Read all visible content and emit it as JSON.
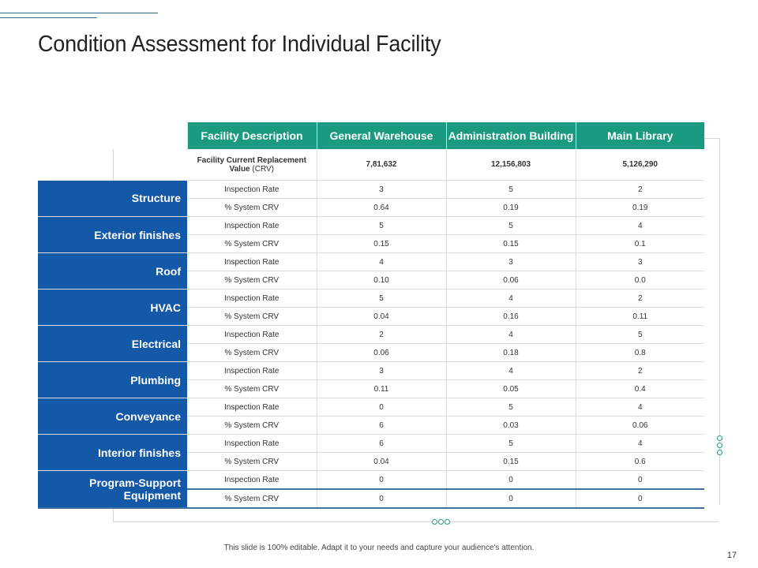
{
  "title": "Condition Assessment for Individual Facility",
  "headers": [
    "Facility Description",
    "General Warehouse",
    "Administration Building",
    "Main Library"
  ],
  "crv": {
    "label_bold": "Facility Current Replacement Value",
    "label_suffix": " (CRV)",
    "values": [
      "7,81,632",
      "12,156,803",
      "5,126,290"
    ]
  },
  "row_labels": {
    "rate": "Inspection Rate",
    "crv": "% System CRV"
  },
  "categories": [
    {
      "name": "Structure",
      "rate": [
        "3",
        "5",
        "2"
      ],
      "crv": [
        "0.64",
        "0.19",
        "0.19"
      ]
    },
    {
      "name": "Exterior finishes",
      "rate": [
        "5",
        "5",
        "4"
      ],
      "crv": [
        "0.15",
        "0.15",
        "0.1"
      ]
    },
    {
      "name": "Roof",
      "rate": [
        "4",
        "3",
        "3"
      ],
      "crv": [
        "0.10",
        "0.06",
        "0.0"
      ]
    },
    {
      "name": "HVAC",
      "rate": [
        "5",
        "4",
        "2"
      ],
      "crv": [
        "0.04",
        "0.16",
        "0.11"
      ]
    },
    {
      "name": "Electrical",
      "rate": [
        "2",
        "4",
        "5"
      ],
      "crv": [
        "0.06",
        "0.18",
        "0.8"
      ]
    },
    {
      "name": "Plumbing",
      "rate": [
        "3",
        "4",
        "2"
      ],
      "crv": [
        "0.11",
        "0.05",
        "0.4"
      ]
    },
    {
      "name": "Conveyance",
      "rate": [
        "0",
        "5",
        "4"
      ],
      "crv": [
        "6",
        "0.03",
        "0.06"
      ]
    },
    {
      "name": "Interior finishes",
      "rate": [
        "6",
        "5",
        "4"
      ],
      "crv": [
        "0.04",
        "0.15",
        "0.6"
      ]
    },
    {
      "name": "Program-Support Equipment",
      "rate": [
        "0",
        "0",
        "0"
      ],
      "crv": [
        "0",
        "0",
        "0"
      ]
    }
  ],
  "footer": "This slide is 100% editable.  Adapt it to your needs and capture your audience's attention.",
  "page_number": "17",
  "colors": {
    "header": "#1a9a80",
    "category": "#1459a8"
  }
}
